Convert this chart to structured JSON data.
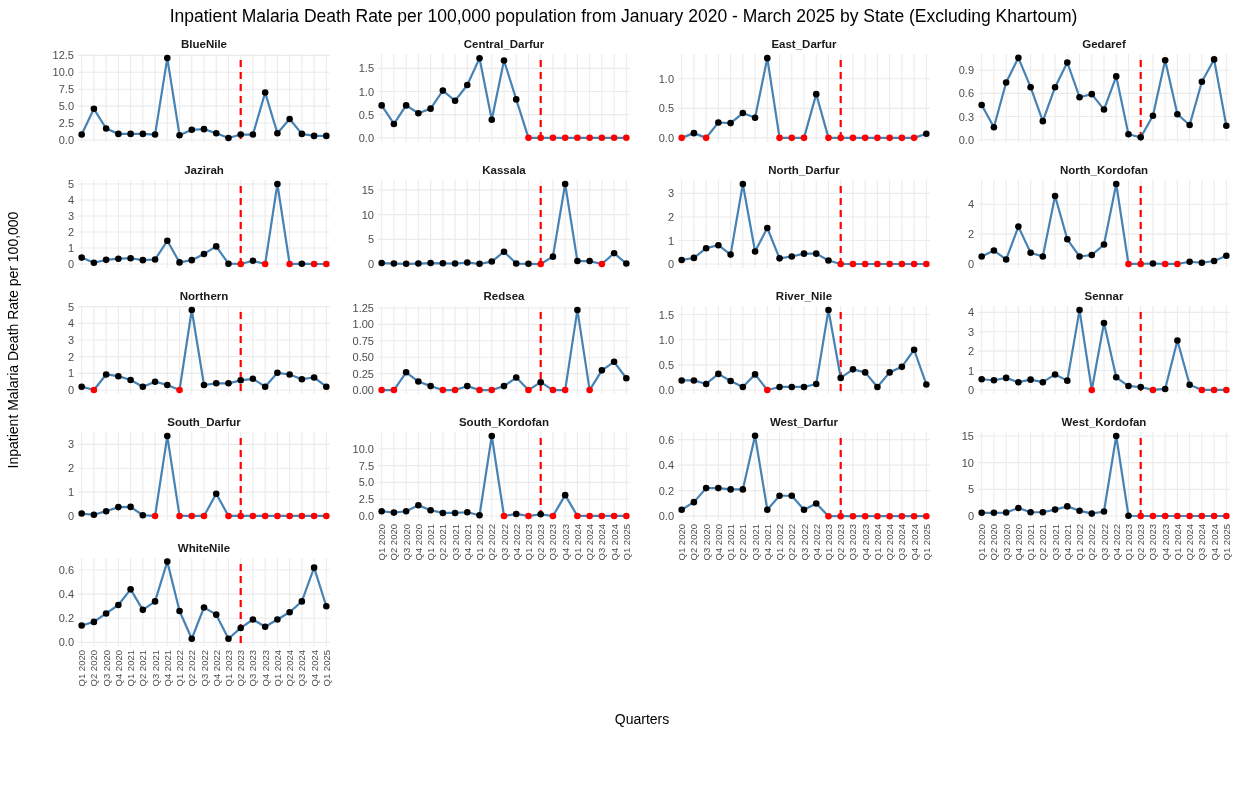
{
  "chart_data": [
    {
      "type": "line",
      "title": "BlueNile",
      "categories": [
        "Q1 2020",
        "Q2 2020",
        "Q3 2020",
        "Q4 2020",
        "Q1 2021",
        "Q2 2021",
        "Q3 2021",
        "Q4 2021",
        "Q1 2022",
        "Q2 2022",
        "Q3 2022",
        "Q4 2022",
        "Q1 2023",
        "Q2 2023",
        "Q3 2023",
        "Q4 2023",
        "Q1 2024",
        "Q2 2024",
        "Q3 2024",
        "Q4 2024",
        "Q1 2025"
      ],
      "ylim": [
        -0.3,
        12.7
      ],
      "yticks": [
        {
          "value": 0,
          "label": "0.0"
        },
        2.5,
        {
          "value": 5,
          "label": "5.0"
        },
        7.5,
        {
          "value": 10,
          "label": "10.0"
        },
        12.5
      ],
      "grid": true,
      "marker": "circle",
      "tick_labels": "y",
      "ref_lines": [
        {
          "axis": "x",
          "value": "Q2 2023",
          "color": "#ff0000",
          "line_style": "dashed"
        }
      ],
      "series": [
        {
          "type": "line",
          "color": "#4682b4",
          "values": [
            0.8,
            4.6,
            1.7,
            0.9,
            0.9,
            0.9,
            0.8,
            12.1,
            0.7,
            1.5,
            1.6,
            1.0,
            0.3,
            0.8,
            0.8,
            7.0,
            1.0,
            3.1,
            0.9,
            0.6,
            0.6
          ],
          "colors": [
            "#000000",
            "#000000",
            "#000000",
            "#000000",
            "#000000",
            "#000000",
            "#000000",
            "#000000",
            "#000000",
            "#000000",
            "#000000",
            "#000000",
            "#000000",
            "#000000",
            "#000000",
            "#000000",
            "#000000",
            "#000000",
            "#000000",
            "#000000",
            "#000000"
          ]
        }
      ]
    },
    {
      "type": "line",
      "title": "Central_Darfur",
      "categories": [
        "Q1 2020",
        "Q2 2020",
        "Q3 2020",
        "Q4 2020",
        "Q1 2021",
        "Q2 2021",
        "Q3 2021",
        "Q4 2021",
        "Q1 2022",
        "Q2 2022",
        "Q3 2022",
        "Q4 2022",
        "Q1 2023",
        "Q2 2023",
        "Q3 2023",
        "Q4 2023",
        "Q1 2024",
        "Q2 2024",
        "Q3 2024",
        "Q4 2024",
        "Q1 2025"
      ],
      "ylim": [
        -0.09,
        1.81
      ],
      "yticks": [
        {
          "value": 0,
          "label": "0.0"
        },
        0.5,
        {
          "value": 1,
          "label": "1.0"
        },
        1.5
      ],
      "grid": true,
      "marker": "circle",
      "tick_labels": "y",
      "ref_lines": [
        {
          "axis": "x",
          "value": "Q2 2023",
          "color": "#ff0000",
          "line_style": "dashed"
        }
      ],
      "series": [
        {
          "type": "line",
          "color": "#4682b4",
          "values": [
            0.7,
            0.3,
            0.7,
            0.53,
            0.63,
            1.02,
            0.8,
            1.14,
            1.72,
            0.39,
            1.67,
            0.83,
            0,
            0,
            0,
            0,
            0,
            0,
            0,
            0,
            0
          ],
          "colors": [
            "#000000",
            "#000000",
            "#000000",
            "#000000",
            "#000000",
            "#000000",
            "#000000",
            "#000000",
            "#000000",
            "#000000",
            "#000000",
            "#000000",
            "#ff0000",
            "#ff0000",
            "#ff0000",
            "#ff0000",
            "#ff0000",
            "#ff0000",
            "#ff0000",
            "#ff0000",
            "#ff0000"
          ]
        }
      ]
    },
    {
      "type": "line",
      "title": "East_Darfur",
      "categories": [
        "Q1 2020",
        "Q2 2020",
        "Q3 2020",
        "Q4 2020",
        "Q1 2021",
        "Q2 2021",
        "Q3 2021",
        "Q4 2021",
        "Q1 2022",
        "Q2 2022",
        "Q3 2022",
        "Q4 2022",
        "Q1 2023",
        "Q2 2023",
        "Q3 2023",
        "Q4 2023",
        "Q1 2024",
        "Q2 2024",
        "Q3 2024",
        "Q4 2024",
        "Q1 2025"
      ],
      "ylim": [
        -0.07,
        1.42
      ],
      "yticks": [
        {
          "value": 0,
          "label": "0.0"
        },
        0.5,
        {
          "value": 1,
          "label": "1.0"
        }
      ],
      "grid": true,
      "marker": "circle",
      "tick_labels": "y",
      "ref_lines": [
        {
          "axis": "x",
          "value": "Q2 2023",
          "color": "#ff0000",
          "line_style": "dashed"
        }
      ],
      "series": [
        {
          "type": "line",
          "color": "#4682b4",
          "values": [
            0,
            0.08,
            0,
            0.26,
            0.25,
            0.42,
            0.34,
            1.35,
            0,
            0,
            0,
            0.74,
            0,
            0,
            0,
            0,
            0,
            0,
            0,
            0,
            0.07
          ],
          "colors": [
            "#ff0000",
            "#000000",
            "#ff0000",
            "#000000",
            "#000000",
            "#000000",
            "#000000",
            "#000000",
            "#ff0000",
            "#ff0000",
            "#ff0000",
            "#000000",
            "#ff0000",
            "#ff0000",
            "#ff0000",
            "#ff0000",
            "#ff0000",
            "#ff0000",
            "#ff0000",
            "#ff0000",
            "#000000"
          ]
        }
      ]
    },
    {
      "type": "line",
      "title": "Gedaref",
      "categories": [
        "Q1 2020",
        "Q2 2020",
        "Q3 2020",
        "Q4 2020",
        "Q1 2021",
        "Q2 2021",
        "Q3 2021",
        "Q4 2021",
        "Q1 2022",
        "Q2 2022",
        "Q3 2022",
        "Q4 2022",
        "Q1 2023",
        "Q2 2023",
        "Q3 2023",
        "Q4 2023",
        "Q1 2024",
        "Q2 2024",
        "Q3 2024",
        "Q4 2024",
        "Q1 2025"
      ],
      "ylim": [
        -0.03,
        1.11
      ],
      "yticks": [
        {
          "value": 0,
          "label": "0.0"
        },
        0.3,
        0.6,
        0.9
      ],
      "grid": true,
      "marker": "circle",
      "tick_labels": "y",
      "ref_lines": [
        {
          "axis": "x",
          "value": "Q2 2023",
          "color": "#ff0000",
          "line_style": "dashed"
        }
      ],
      "series": [
        {
          "type": "line",
          "color": "#4682b4",
          "values": [
            0.45,
            0.16,
            0.74,
            1.06,
            0.68,
            0.24,
            0.68,
            1.0,
            0.55,
            0.59,
            0.39,
            0.82,
            0.07,
            0.03,
            0.31,
            1.03,
            0.33,
            0.19,
            0.75,
            1.04,
            0.18
          ],
          "colors": [
            "#000000",
            "#000000",
            "#000000",
            "#000000",
            "#000000",
            "#000000",
            "#000000",
            "#000000",
            "#000000",
            "#000000",
            "#000000",
            "#000000",
            "#000000",
            "#000000",
            "#000000",
            "#000000",
            "#000000",
            "#000000",
            "#000000",
            "#000000",
            "#000000"
          ]
        }
      ]
    },
    {
      "type": "line",
      "title": "Jazirah",
      "categories": [
        "Q1 2020",
        "Q2 2020",
        "Q3 2020",
        "Q4 2020",
        "Q1 2021",
        "Q2 2021",
        "Q3 2021",
        "Q4 2021",
        "Q1 2022",
        "Q2 2022",
        "Q3 2022",
        "Q4 2022",
        "Q1 2023",
        "Q2 2023",
        "Q3 2023",
        "Q4 2023",
        "Q1 2024",
        "Q2 2024",
        "Q3 2024",
        "Q4 2024",
        "Q1 2025"
      ],
      "ylim": [
        -0.25,
        5.25
      ],
      "yticks": [
        0,
        1,
        2,
        3,
        4,
        5
      ],
      "grid": true,
      "marker": "circle",
      "tick_labels": "y",
      "ref_lines": [
        {
          "axis": "x",
          "value": "Q2 2023",
          "color": "#ff0000",
          "line_style": "dashed"
        }
      ],
      "series": [
        {
          "type": "line",
          "color": "#4682b4",
          "values": [
            0.4,
            0.08,
            0.26,
            0.33,
            0.36,
            0.24,
            0.28,
            1.45,
            0.1,
            0.24,
            0.63,
            1.1,
            0.02,
            0,
            0.2,
            0,
            5.0,
            0,
            0.02,
            0,
            0
          ],
          "colors": [
            "#000000",
            "#000000",
            "#000000",
            "#000000",
            "#000000",
            "#000000",
            "#000000",
            "#000000",
            "#000000",
            "#000000",
            "#000000",
            "#000000",
            "#000000",
            "#ff0000",
            "#000000",
            "#ff0000",
            "#000000",
            "#ff0000",
            "#000000",
            "#ff0000",
            "#ff0000"
          ]
        }
      ]
    },
    {
      "type": "line",
      "title": "Kassala",
      "categories": [
        "Q1 2020",
        "Q2 2020",
        "Q3 2020",
        "Q4 2020",
        "Q1 2021",
        "Q2 2021",
        "Q3 2021",
        "Q4 2021",
        "Q1 2022",
        "Q2 2022",
        "Q3 2022",
        "Q4 2022",
        "Q1 2023",
        "Q2 2023",
        "Q3 2023",
        "Q4 2023",
        "Q1 2024",
        "Q2 2024",
        "Q3 2024",
        "Q4 2024",
        "Q1 2025"
      ],
      "ylim": [
        -0.8,
        17.0
      ],
      "yticks": [
        0,
        5,
        10,
        15
      ],
      "grid": true,
      "marker": "circle",
      "tick_labels": "y",
      "ref_lines": [
        {
          "axis": "x",
          "value": "Q2 2023",
          "color": "#ff0000",
          "line_style": "dashed"
        }
      ],
      "series": [
        {
          "type": "line",
          "color": "#4682b4",
          "values": [
            0.2,
            0.1,
            0.05,
            0.1,
            0.2,
            0.15,
            0.1,
            0.3,
            0.05,
            0.5,
            2.5,
            0.1,
            0.05,
            0,
            1.5,
            16.2,
            0.6,
            0.6,
            0,
            2.2,
            0.1
          ],
          "colors": [
            "#000000",
            "#000000",
            "#000000",
            "#000000",
            "#000000",
            "#000000",
            "#000000",
            "#000000",
            "#000000",
            "#000000",
            "#000000",
            "#000000",
            "#000000",
            "#ff0000",
            "#000000",
            "#000000",
            "#000000",
            "#000000",
            "#ff0000",
            "#000000",
            "#000000"
          ]
        }
      ]
    },
    {
      "type": "line",
      "title": "North_Darfur",
      "categories": [
        "Q1 2020",
        "Q2 2020",
        "Q3 2020",
        "Q4 2020",
        "Q1 2021",
        "Q2 2021",
        "Q3 2021",
        "Q4 2021",
        "Q1 2022",
        "Q2 2022",
        "Q3 2022",
        "Q4 2022",
        "Q1 2023",
        "Q2 2023",
        "Q3 2023",
        "Q4 2023",
        "Q1 2024",
        "Q2 2024",
        "Q3 2024",
        "Q4 2024",
        "Q1 2025"
      ],
      "ylim": [
        -0.17,
        3.57
      ],
      "yticks": [
        0,
        1,
        2,
        3
      ],
      "grid": true,
      "marker": "circle",
      "tick_labels": "y",
      "ref_lines": [
        {
          "axis": "x",
          "value": "Q2 2023",
          "color": "#ff0000",
          "line_style": "dashed"
        }
      ],
      "series": [
        {
          "type": "line",
          "color": "#4682b4",
          "values": [
            0.17,
            0.26,
            0.67,
            0.8,
            0.4,
            3.4,
            0.53,
            1.53,
            0.24,
            0.32,
            0.44,
            0.44,
            0.15,
            0,
            0,
            0,
            0,
            0,
            0,
            0,
            0
          ],
          "colors": [
            "#000000",
            "#000000",
            "#000000",
            "#000000",
            "#000000",
            "#000000",
            "#000000",
            "#000000",
            "#000000",
            "#000000",
            "#000000",
            "#000000",
            "#000000",
            "#ff0000",
            "#ff0000",
            "#ff0000",
            "#ff0000",
            "#ff0000",
            "#ff0000",
            "#ff0000",
            "#ff0000"
          ]
        }
      ]
    },
    {
      "type": "line",
      "title": "North_Kordofan",
      "categories": [
        "Q1 2020",
        "Q2 2020",
        "Q3 2020",
        "Q4 2020",
        "Q1 2021",
        "Q2 2021",
        "Q3 2021",
        "Q4 2021",
        "Q1 2022",
        "Q2 2022",
        "Q3 2022",
        "Q4 2022",
        "Q1 2023",
        "Q2 2023",
        "Q3 2023",
        "Q4 2023",
        "Q1 2024",
        "Q2 2024",
        "Q3 2024",
        "Q4 2024",
        "Q1 2025"
      ],
      "ylim": [
        -0.27,
        5.62
      ],
      "yticks": [
        0,
        2,
        4
      ],
      "grid": true,
      "marker": "circle",
      "tick_labels": "y",
      "ref_lines": [
        {
          "axis": "x",
          "value": "Q2 2023",
          "color": "#ff0000",
          "line_style": "dashed"
        }
      ],
      "series": [
        {
          "type": "line",
          "color": "#4682b4",
          "values": [
            0.5,
            0.9,
            0.3,
            2.5,
            0.75,
            0.5,
            4.55,
            1.65,
            0.5,
            0.6,
            1.3,
            5.35,
            0,
            0,
            0.03,
            0,
            0,
            0.15,
            0.08,
            0.2,
            0.55
          ],
          "colors": [
            "#000000",
            "#000000",
            "#000000",
            "#000000",
            "#000000",
            "#000000",
            "#000000",
            "#000000",
            "#000000",
            "#000000",
            "#000000",
            "#000000",
            "#ff0000",
            "#ff0000",
            "#000000",
            "#ff0000",
            "#ff0000",
            "#000000",
            "#000000",
            "#000000",
            "#000000"
          ]
        }
      ]
    },
    {
      "type": "line",
      "title": "Northern",
      "categories": [
        "Q1 2020",
        "Q2 2020",
        "Q3 2020",
        "Q4 2020",
        "Q1 2021",
        "Q2 2021",
        "Q3 2021",
        "Q4 2021",
        "Q1 2022",
        "Q2 2022",
        "Q3 2022",
        "Q4 2022",
        "Q1 2023",
        "Q2 2023",
        "Q3 2023",
        "Q4 2023",
        "Q1 2024",
        "Q2 2024",
        "Q3 2024",
        "Q4 2024",
        "Q1 2025"
      ],
      "ylim": [
        -0.24,
        5.04
      ],
      "yticks": [
        0,
        1,
        2,
        3,
        4,
        5
      ],
      "grid": true,
      "marker": "circle",
      "tick_labels": "y",
      "ref_lines": [
        {
          "axis": "x",
          "value": "Q2 2023",
          "color": "#ff0000",
          "line_style": "dashed"
        }
      ],
      "series": [
        {
          "type": "line",
          "color": "#4682b4",
          "values": [
            0.2,
            0,
            0.93,
            0.83,
            0.6,
            0.2,
            0.5,
            0.3,
            0,
            4.8,
            0.3,
            0.4,
            0.4,
            0.58,
            0.67,
            0.2,
            1.03,
            0.93,
            0.65,
            0.75,
            0.2
          ],
          "colors": [
            "#000000",
            "#ff0000",
            "#000000",
            "#000000",
            "#000000",
            "#000000",
            "#000000",
            "#000000",
            "#ff0000",
            "#000000",
            "#000000",
            "#000000",
            "#000000",
            "#000000",
            "#000000",
            "#000000",
            "#000000",
            "#000000",
            "#000000",
            "#000000",
            "#000000"
          ]
        }
      ]
    },
    {
      "type": "line",
      "title": "Redsea",
      "categories": [
        "Q1 2020",
        "Q2 2020",
        "Q3 2020",
        "Q4 2020",
        "Q1 2021",
        "Q2 2021",
        "Q3 2021",
        "Q4 2021",
        "Q1 2022",
        "Q2 2022",
        "Q3 2022",
        "Q4 2022",
        "Q1 2023",
        "Q2 2023",
        "Q3 2023",
        "Q4 2023",
        "Q1 2024",
        "Q2 2024",
        "Q3 2024",
        "Q4 2024",
        "Q1 2025"
      ],
      "ylim": [
        -0.06,
        1.28
      ],
      "yticks": [
        {
          "value": 0,
          "label": "0.00"
        },
        0.25,
        {
          "value": 0.5,
          "label": "0.50"
        },
        0.75,
        {
          "value": 1,
          "label": "1.00"
        },
        1.25
      ],
      "grid": true,
      "marker": "circle",
      "tick_labels": "y",
      "ref_lines": [
        {
          "axis": "x",
          "value": "Q2 2023",
          "color": "#ff0000",
          "line_style": "dashed"
        }
      ],
      "series": [
        {
          "type": "line",
          "color": "#4682b4",
          "values": [
            0,
            0,
            0.27,
            0.13,
            0.06,
            0,
            0,
            0.06,
            0,
            0,
            0.06,
            0.19,
            0,
            0.12,
            0,
            0,
            1.22,
            0,
            0.3,
            0.43,
            0.18
          ],
          "colors": [
            "#ff0000",
            "#ff0000",
            "#000000",
            "#000000",
            "#000000",
            "#ff0000",
            "#ff0000",
            "#000000",
            "#ff0000",
            "#ff0000",
            "#000000",
            "#000000",
            "#ff0000",
            "#000000",
            "#ff0000",
            "#ff0000",
            "#000000",
            "#ff0000",
            "#000000",
            "#000000",
            "#000000"
          ]
        }
      ]
    },
    {
      "type": "line",
      "title": "River_Nile",
      "categories": [
        "Q1 2020",
        "Q2 2020",
        "Q3 2020",
        "Q4 2020",
        "Q1 2021",
        "Q2 2021",
        "Q3 2021",
        "Q4 2021",
        "Q1 2022",
        "Q2 2022",
        "Q3 2022",
        "Q4 2022",
        "Q1 2023",
        "Q2 2023",
        "Q3 2023",
        "Q4 2023",
        "Q1 2024",
        "Q2 2024",
        "Q3 2024",
        "Q4 2024",
        "Q1 2025"
      ],
      "ylim": [
        -0.08,
        1.67
      ],
      "yticks": [
        {
          "value": 0,
          "label": "0.0"
        },
        0.5,
        {
          "value": 1,
          "label": "1.0"
        },
        1.5
      ],
      "grid": true,
      "marker": "circle",
      "tick_labels": "y",
      "ref_lines": [
        {
          "axis": "x",
          "value": "Q2 2023",
          "color": "#ff0000",
          "line_style": "dashed"
        }
      ],
      "series": [
        {
          "type": "line",
          "color": "#4682b4",
          "values": [
            0.19,
            0.19,
            0.12,
            0.32,
            0.18,
            0.06,
            0.31,
            0,
            0.06,
            0.06,
            0.06,
            0.12,
            1.59,
            0.24,
            0.41,
            0.35,
            0.06,
            0.35,
            0.46,
            0.8,
            0.11
          ],
          "colors": [
            "#000000",
            "#000000",
            "#000000",
            "#000000",
            "#000000",
            "#000000",
            "#000000",
            "#ff0000",
            "#000000",
            "#000000",
            "#000000",
            "#000000",
            "#000000",
            "#000000",
            "#000000",
            "#000000",
            "#000000",
            "#000000",
            "#000000",
            "#000000",
            "#000000"
          ]
        }
      ]
    },
    {
      "type": "line",
      "title": "Sennar",
      "categories": [
        "Q1 2020",
        "Q2 2020",
        "Q3 2020",
        "Q4 2020",
        "Q1 2021",
        "Q2 2021",
        "Q3 2021",
        "Q4 2021",
        "Q1 2022",
        "Q2 2022",
        "Q3 2022",
        "Q4 2022",
        "Q1 2023",
        "Q2 2023",
        "Q3 2023",
        "Q4 2023",
        "Q1 2024",
        "Q2 2024",
        "Q3 2024",
        "Q4 2024",
        "Q1 2025"
      ],
      "ylim": [
        -0.21,
        4.33
      ],
      "yticks": [
        0,
        1,
        2,
        3,
        4
      ],
      "grid": true,
      "marker": "circle",
      "tick_labels": "y",
      "ref_lines": [
        {
          "axis": "x",
          "value": "Q2 2023",
          "color": "#ff0000",
          "line_style": "dashed"
        }
      ],
      "series": [
        {
          "type": "line",
          "color": "#4682b4",
          "values": [
            0.55,
            0.5,
            0.62,
            0.4,
            0.53,
            0.4,
            0.8,
            0.48,
            4.12,
            0,
            3.45,
            0.65,
            0.2,
            0.15,
            0,
            0.05,
            2.55,
            0.27,
            0,
            0,
            0
          ],
          "colors": [
            "#000000",
            "#000000",
            "#000000",
            "#000000",
            "#000000",
            "#000000",
            "#000000",
            "#000000",
            "#000000",
            "#ff0000",
            "#000000",
            "#000000",
            "#000000",
            "#000000",
            "#ff0000",
            "#000000",
            "#000000",
            "#000000",
            "#ff0000",
            "#ff0000",
            "#ff0000"
          ]
        }
      ]
    },
    {
      "type": "line",
      "title": "South_Darfur",
      "categories": [
        "Q1 2020",
        "Q2 2020",
        "Q3 2020",
        "Q4 2020",
        "Q1 2021",
        "Q2 2021",
        "Q3 2021",
        "Q4 2021",
        "Q1 2022",
        "Q2 2022",
        "Q3 2022",
        "Q4 2022",
        "Q1 2023",
        "Q2 2023",
        "Q3 2023",
        "Q4 2023",
        "Q1 2024",
        "Q2 2024",
        "Q3 2024",
        "Q4 2024",
        "Q1 2025"
      ],
      "ylim": [
        -0.17,
        3.52
      ],
      "yticks": [
        0,
        1,
        2,
        3
      ],
      "grid": true,
      "marker": "circle",
      "tick_labels": "y",
      "ref_lines": [
        {
          "axis": "x",
          "value": "Q2 2023",
          "color": "#ff0000",
          "line_style": "dashed"
        }
      ],
      "series": [
        {
          "type": "line",
          "color": "#4682b4",
          "values": [
            0.1,
            0.05,
            0.2,
            0.37,
            0.38,
            0.03,
            0,
            3.35,
            0,
            0,
            0,
            0.93,
            0,
            0,
            0,
            0,
            0,
            0,
            0,
            0,
            0
          ],
          "colors": [
            "#000000",
            "#000000",
            "#000000",
            "#000000",
            "#000000",
            "#000000",
            "#ff0000",
            "#000000",
            "#ff0000",
            "#ff0000",
            "#ff0000",
            "#000000",
            "#ff0000",
            "#ff0000",
            "#ff0000",
            "#ff0000",
            "#ff0000",
            "#ff0000",
            "#ff0000",
            "#ff0000",
            "#ff0000"
          ]
        }
      ]
    },
    {
      "type": "line",
      "title": "South_Kordofan",
      "categories": [
        "Q1 2020",
        "Q2 2020",
        "Q3 2020",
        "Q4 2020",
        "Q1 2021",
        "Q2 2021",
        "Q3 2021",
        "Q4 2021",
        "Q1 2022",
        "Q2 2022",
        "Q3 2022",
        "Q4 2022",
        "Q1 2023",
        "Q2 2023",
        "Q3 2023",
        "Q4 2023",
        "Q1 2024",
        "Q2 2024",
        "Q3 2024",
        "Q4 2024",
        "Q1 2025"
      ],
      "ylim": [
        -0.6,
        12.5
      ],
      "yticks": [
        {
          "value": 0,
          "label": "0.0"
        },
        2.5,
        {
          "value": 5,
          "label": "5.0"
        },
        7.5,
        {
          "value": 10,
          "label": "10.0"
        }
      ],
      "grid": true,
      "marker": "circle",
      "ref_lines": [
        {
          "axis": "x",
          "value": "Q2 2023",
          "color": "#ff0000",
          "line_style": "dashed"
        }
      ],
      "series": [
        {
          "type": "line",
          "color": "#4682b4",
          "values": [
            0.7,
            0.5,
            0.7,
            1.6,
            0.85,
            0.45,
            0.45,
            0.55,
            0.1,
            11.9,
            0,
            0.3,
            0,
            0.25,
            0,
            3.1,
            0,
            0,
            0,
            0,
            0
          ],
          "colors": [
            "#000000",
            "#000000",
            "#000000",
            "#000000",
            "#000000",
            "#000000",
            "#000000",
            "#000000",
            "#000000",
            "#000000",
            "#ff0000",
            "#000000",
            "#ff0000",
            "#000000",
            "#ff0000",
            "#000000",
            "#ff0000",
            "#ff0000",
            "#ff0000",
            "#ff0000",
            "#ff0000"
          ]
        }
      ]
    },
    {
      "type": "line",
      "title": "West_Darfur",
      "categories": [
        "Q1 2020",
        "Q2 2020",
        "Q3 2020",
        "Q4 2020",
        "Q1 2021",
        "Q2 2021",
        "Q3 2021",
        "Q4 2021",
        "Q1 2022",
        "Q2 2022",
        "Q3 2022",
        "Q4 2022",
        "Q1 2023",
        "Q2 2023",
        "Q3 2023",
        "Q4 2023",
        "Q1 2024",
        "Q2 2024",
        "Q3 2024",
        "Q4 2024",
        "Q1 2025"
      ],
      "ylim": [
        -0.03,
        0.66
      ],
      "yticks": [
        {
          "value": 0,
          "label": "0.0"
        },
        0.2,
        0.4,
        0.6
      ],
      "grid": true,
      "marker": "circle",
      "ref_lines": [
        {
          "axis": "x",
          "value": "Q2 2023",
          "color": "#ff0000",
          "line_style": "dashed"
        }
      ],
      "series": [
        {
          "type": "line",
          "color": "#4682b4",
          "values": [
            0.05,
            0.11,
            0.22,
            0.22,
            0.21,
            0.21,
            0.63,
            0.05,
            0.16,
            0.16,
            0.05,
            0.1,
            0,
            0,
            0,
            0,
            0,
            0,
            0,
            0,
            0
          ],
          "colors": [
            "#000000",
            "#000000",
            "#000000",
            "#000000",
            "#000000",
            "#000000",
            "#000000",
            "#000000",
            "#000000",
            "#000000",
            "#000000",
            "#000000",
            "#ff0000",
            "#ff0000",
            "#ff0000",
            "#ff0000",
            "#ff0000",
            "#ff0000",
            "#ff0000",
            "#ff0000",
            "#ff0000"
          ]
        }
      ]
    },
    {
      "type": "line",
      "title": "West_Kordofan",
      "categories": [
        "Q1 2020",
        "Q2 2020",
        "Q3 2020",
        "Q4 2020",
        "Q1 2021",
        "Q2 2021",
        "Q3 2021",
        "Q4 2021",
        "Q1 2022",
        "Q2 2022",
        "Q3 2022",
        "Q4 2022",
        "Q1 2023",
        "Q2 2023",
        "Q3 2023",
        "Q4 2023",
        "Q1 2024",
        "Q2 2024",
        "Q3 2024",
        "Q4 2024",
        "Q1 2025"
      ],
      "ylim": [
        -0.75,
        15.75
      ],
      "yticks": [
        0,
        5,
        10,
        15
      ],
      "grid": true,
      "marker": "circle",
      "ref_lines": [
        {
          "axis": "x",
          "value": "Q2 2023",
          "color": "#ff0000",
          "line_style": "dashed"
        }
      ],
      "series": [
        {
          "type": "line",
          "color": "#4682b4",
          "values": [
            0.6,
            0.6,
            0.65,
            1.5,
            0.7,
            0.7,
            1.2,
            1.8,
            1.0,
            0.45,
            0.85,
            15.0,
            0.05,
            0,
            0,
            0,
            0,
            0,
            0,
            0,
            0
          ],
          "colors": [
            "#000000",
            "#000000",
            "#000000",
            "#000000",
            "#000000",
            "#000000",
            "#000000",
            "#000000",
            "#000000",
            "#000000",
            "#000000",
            "#000000",
            "#000000",
            "#ff0000",
            "#ff0000",
            "#ff0000",
            "#ff0000",
            "#ff0000",
            "#ff0000",
            "#ff0000",
            "#ff0000"
          ]
        }
      ]
    },
    {
      "type": "line",
      "title": "WhiteNile",
      "categories": [
        "Q1 2020",
        "Q2 2020",
        "Q3 2020",
        "Q4 2020",
        "Q1 2021",
        "Q2 2021",
        "Q3 2021",
        "Q4 2021",
        "Q1 2022",
        "Q2 2022",
        "Q3 2022",
        "Q4 2022",
        "Q1 2023",
        "Q2 2023",
        "Q3 2023",
        "Q4 2023",
        "Q1 2024",
        "Q2 2024",
        "Q3 2024",
        "Q4 2024",
        "Q1 2025"
      ],
      "ylim": [
        -0.03,
        0.7
      ],
      "yticks": [
        {
          "value": 0,
          "label": "0.0"
        },
        0.2,
        0.4,
        0.6
      ],
      "grid": true,
      "marker": "circle",
      "ref_lines": [
        {
          "axis": "x",
          "value": "Q2 2023",
          "color": "#ff0000",
          "line_style": "dashed"
        }
      ],
      "series": [
        {
          "type": "line",
          "color": "#4682b4",
          "values": [
            0.14,
            0.17,
            0.24,
            0.31,
            0.44,
            0.27,
            0.34,
            0.67,
            0.26,
            0.03,
            0.29,
            0.23,
            0.03,
            0.12,
            0.19,
            0.13,
            0.19,
            0.25,
            0.34,
            0.62,
            0.3
          ],
          "colors": [
            "#000000",
            "#000000",
            "#000000",
            "#000000",
            "#000000",
            "#000000",
            "#000000",
            "#000000",
            "#000000",
            "#000000",
            "#000000",
            "#000000",
            "#000000",
            "#000000",
            "#000000",
            "#000000",
            "#000000",
            "#000000",
            "#000000",
            "#000000",
            "#000000"
          ]
        }
      ]
    },
    {
      "type": "other",
      "title": "Inpatient Malaria Death Rate per 100,000 population from January 2020 - March 2025 by State (Excluding Khartoum)",
      "xlabel": "Quarters",
      "ylabel": "Inpatient Malaria Death Rate per 100,000"
    }
  ]
}
